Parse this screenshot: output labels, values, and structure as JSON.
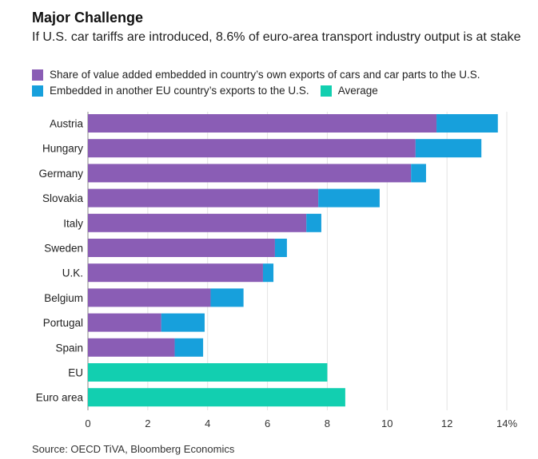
{
  "colors": {
    "own": "#8a5db5",
    "other": "#17a0dc",
    "average": "#12cfb0",
    "grid": "#e3e3e3",
    "axis": "#888888"
  },
  "chart_data": {
    "type": "bar",
    "orientation": "horizontal",
    "stacked": true,
    "title": "Major Challenge",
    "subtitle": "If U.S. car tariffs are introduced, 8.6% of euro-area transport industry output is at stake",
    "categories": [
      "Austria",
      "Hungary",
      "Germany",
      "Slovakia",
      "Italy",
      "Sweden",
      "U.K.",
      "Belgium",
      "Portugal",
      "Spain",
      "EU",
      "Euro area"
    ],
    "series": [
      {
        "name": "Share of value added embedded in country’s own exports of cars and car parts to the U.S.",
        "color_key": "own",
        "values": [
          11.65,
          10.95,
          10.8,
          7.7,
          7.3,
          6.25,
          5.85,
          4.1,
          2.45,
          2.9,
          null,
          null
        ]
      },
      {
        "name": "Embedded in another EU country’s exports to the U.S.",
        "color_key": "other",
        "values": [
          2.05,
          2.2,
          0.5,
          2.05,
          0.5,
          0.4,
          0.35,
          1.1,
          1.45,
          0.95,
          null,
          null
        ]
      },
      {
        "name": "Average",
        "color_key": "average",
        "values": [
          null,
          null,
          null,
          null,
          null,
          null,
          null,
          null,
          null,
          null,
          8.0,
          8.6
        ]
      }
    ],
    "xlim": [
      0,
      14
    ],
    "xticks": [
      "0",
      "2",
      "4",
      "6",
      "8",
      "10",
      "12",
      "14%"
    ],
    "xtick_values": [
      0,
      2,
      4,
      6,
      8,
      10,
      12,
      14
    ],
    "grid": true,
    "legend_position": "top",
    "source": "Source: OECD TiVA, Bloomberg Economics"
  }
}
